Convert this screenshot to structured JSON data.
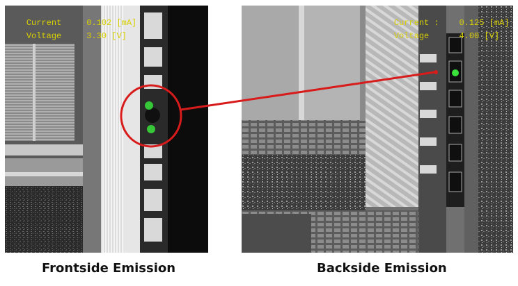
{
  "frontside": {
    "current_label": "Current",
    "current_value": "0.102 [mA]",
    "voltage_label": "Voltage",
    "voltage_value": "3.30 [V]",
    "caption": "Frontside Emission"
  },
  "backside": {
    "current_label": "Current :",
    "current_value": "0.125 [mA]",
    "voltage_label": "Voltage",
    "voltage_value": "4.00 [V]",
    "caption": "Backside Emission"
  },
  "colors": {
    "hud_text": "#d8d000",
    "emission_spot": "#39e23a",
    "callout": "#d81b1b"
  }
}
